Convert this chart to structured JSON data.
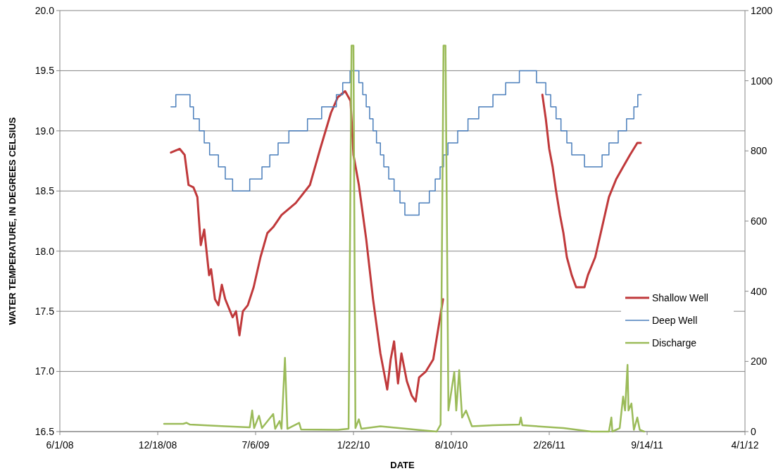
{
  "chart_data": {
    "type": "line",
    "xlabel": "DATE",
    "ylabel": "WATER TEMPERATURE, IN DEGREES CELSIUS",
    "xlim": [
      "2008-06-01",
      "2012-04-01"
    ],
    "xticks": [
      {
        "value": "2008-06-01",
        "label": "6/1/08"
      },
      {
        "value": "2008-12-18",
        "label": "12/18/08"
      },
      {
        "value": "2009-07-06",
        "label": "7/6/09"
      },
      {
        "value": "2010-01-22",
        "label": "1/22/10"
      },
      {
        "value": "2010-08-10",
        "label": "8/10/10"
      },
      {
        "value": "2011-02-26",
        "label": "2/26/11"
      },
      {
        "value": "2011-09-14",
        "label": "9/14/11"
      },
      {
        "value": "2012-04-01",
        "label": "4/1/12"
      }
    ],
    "ylim": [
      16.5,
      20
    ],
    "yticks": [
      {
        "value": 16.5,
        "label": "16.5"
      },
      {
        "value": 17,
        "label": "17.0"
      },
      {
        "value": 17.5,
        "label": "17.5"
      },
      {
        "value": 18,
        "label": "18.0"
      },
      {
        "value": 18.5,
        "label": "18.5"
      },
      {
        "value": 19,
        "label": "19.0"
      },
      {
        "value": 19.5,
        "label": "19.5"
      },
      {
        "value": 20,
        "label": "20.0"
      }
    ],
    "y2lim": [
      0,
      1200
    ],
    "y2ticks": [
      0,
      200,
      400,
      600,
      800,
      1000,
      1200
    ],
    "grid": "y",
    "legend": "bottom right",
    "series": [
      {
        "name": "Shallow Well",
        "color": "#c0393b",
        "x": [
          "2009-01-14",
          "2009-02-01",
          "2009-02-11",
          "2009-02-19",
          "2009-03-01",
          "2009-03-09",
          "2009-03-16",
          "2009-03-23",
          "2009-04-02",
          "2009-04-06",
          "2009-04-14",
          "2009-04-21",
          "2009-04-28",
          "2009-05-05",
          "2009-05-20",
          "2009-05-27",
          "2009-06-03",
          "2009-06-10",
          "2009-06-20",
          "2009-07-02",
          "2009-07-16",
          "2009-07-30",
          "2009-08-11",
          "2009-08-28",
          "2009-09-26",
          "2009-10-25",
          "2009-11-15",
          "2009-12-07",
          "2009-12-21",
          "2010-01-05",
          "2010-01-16",
          "2010-01-22",
          "2010-02-02",
          "2010-02-17",
          "2010-03-03",
          "2010-03-18",
          "2010-03-25",
          "2010-04-01",
          "2010-04-08",
          "2010-04-15",
          "2010-04-23",
          "2010-04-30",
          "2010-05-11",
          "2010-05-21",
          "2010-05-29",
          "2010-06-05",
          "2010-06-19",
          "2010-07-04",
          "2010-07-14",
          "2010-07-24",
          "2010-10-01",
          "2011-02-12",
          "2011-02-19",
          "2011-02-26",
          "2011-03-05",
          "2011-03-12",
          "2011-03-20",
          "2011-03-27",
          "2011-04-03",
          "2011-04-13",
          "2011-04-22",
          "2011-05-09",
          "2011-05-16",
          "2011-05-31",
          "2011-06-14",
          "2011-06-28",
          "2011-07-13",
          "2011-07-27",
          "2011-08-10",
          "2011-08-25",
          "2011-09-01"
        ],
        "values": [
          18.82,
          18.85,
          18.8,
          18.55,
          18.53,
          18.45,
          18.05,
          18.18,
          17.8,
          17.85,
          17.6,
          17.55,
          17.72,
          17.6,
          17.45,
          17.5,
          17.3,
          17.5,
          17.55,
          17.7,
          17.95,
          18.15,
          18.2,
          18.3,
          18.4,
          18.55,
          18.85,
          19.15,
          19.28,
          19.33,
          19.25,
          18.8,
          18.55,
          18.1,
          17.6,
          17.15,
          17.0,
          16.85,
          17.1,
          17.25,
          16.9,
          17.15,
          16.92,
          16.8,
          16.75,
          16.95,
          17.0,
          17.1,
          17.35,
          17.6,
          null,
          19.3,
          19.1,
          18.85,
          18.7,
          18.5,
          18.3,
          18.15,
          17.95,
          17.8,
          17.7,
          17.7,
          17.8,
          17.95,
          18.2,
          18.45,
          18.6,
          18.7,
          18.8,
          18.9,
          18.9
        ]
      },
      {
        "name": "Deep Well",
        "type": "step",
        "color": "#4a7ebb",
        "x": [
          "2009-01-14",
          "2009-01-24",
          "2009-02-22",
          "2009-03-01",
          "2009-03-13",
          "2009-03-23",
          "2009-04-03",
          "2009-04-21",
          "2009-05-05",
          "2009-05-20",
          "2009-06-24",
          "2009-07-19",
          "2009-08-04",
          "2009-08-21",
          "2009-09-12",
          "2009-10-20",
          "2009-11-18",
          "2009-12-18",
          "2009-12-31",
          "2010-01-15",
          "2010-02-02",
          "2010-02-10",
          "2010-02-17",
          "2010-02-24",
          "2010-03-03",
          "2010-03-10",
          "2010-03-18",
          "2010-03-25",
          "2010-04-04",
          "2010-04-15",
          "2010-04-27",
          "2010-05-07",
          "2010-06-05",
          "2010-06-26",
          "2010-07-08",
          "2010-07-18",
          "2010-07-25",
          "2010-08-03",
          "2010-08-23",
          "2010-09-13",
          "2010-10-05",
          "2010-11-03",
          "2010-11-29",
          "2010-12-27",
          "2011-01-31",
          "2011-02-19",
          "2011-03-01",
          "2011-03-12",
          "2011-03-22",
          "2011-04-03",
          "2011-04-13",
          "2011-05-09",
          "2011-06-14",
          "2011-06-28",
          "2011-07-17",
          "2011-08-03",
          "2011-08-18",
          "2011-08-26",
          "2011-09-02"
        ],
        "values": [
          19.2,
          19.3,
          19.2,
          19.1,
          19.0,
          18.9,
          18.8,
          18.7,
          18.6,
          18.5,
          18.6,
          18.7,
          18.8,
          18.9,
          19.0,
          19.1,
          19.2,
          19.3,
          19.4,
          19.5,
          19.4,
          19.3,
          19.2,
          19.1,
          19.0,
          18.9,
          18.8,
          18.7,
          18.6,
          18.5,
          18.4,
          18.3,
          18.4,
          18.5,
          18.6,
          18.7,
          18.8,
          18.9,
          19.0,
          19.1,
          19.2,
          19.3,
          19.4,
          19.5,
          19.4,
          19.3,
          19.2,
          19.1,
          19.0,
          18.9,
          18.8,
          18.7,
          18.8,
          18.9,
          19.0,
          19.1,
          19.2,
          19.3,
          19.3
        ]
      },
      {
        "name": "Discharge",
        "axis": "y2",
        "color": "#9bbb59",
        "x": [
          "2008-12-31",
          "2009-02-08",
          "2009-02-15",
          "2009-02-22",
          "2009-05-05",
          "2009-06-24",
          "2009-06-29",
          "2009-07-03",
          "2009-07-13",
          "2009-07-19",
          "2009-08-11",
          "2009-08-15",
          "2009-08-24",
          "2009-08-28",
          "2009-09-04",
          "2009-09-09",
          "2009-10-03",
          "2009-10-07",
          "2009-12-21",
          "2010-01-12",
          "2010-01-18",
          "2010-01-22",
          "2010-01-26",
          "2010-02-02",
          "2010-02-07",
          "2010-03-18",
          "2010-06-02",
          "2010-07-11",
          "2010-07-19",
          "2010-07-25",
          "2010-07-29",
          "2010-08-04",
          "2010-08-16",
          "2010-08-20",
          "2010-08-26",
          "2010-09-01",
          "2010-09-09",
          "2010-09-21",
          "2010-11-03",
          "2010-12-27",
          "2010-12-30",
          "2011-01-02",
          "2011-03-27",
          "2011-05-23",
          "2011-06-28",
          "2011-07-03",
          "2011-07-05",
          "2011-07-20",
          "2011-07-27",
          "2011-07-31",
          "2011-08-05",
          "2011-08-07",
          "2011-08-13",
          "2011-08-18",
          "2011-08-25",
          "2011-08-30",
          "2011-09-08"
        ],
        "values": [
          22,
          22,
          25,
          20,
          15,
          12,
          60,
          10,
          45,
          10,
          50,
          8,
          30,
          8,
          210,
          8,
          25,
          6,
          5,
          8,
          1100,
          1100,
          10,
          35,
          8,
          15,
          5,
          0,
          20,
          1100,
          1100,
          60,
          170,
          60,
          175,
          40,
          60,
          15,
          18,
          20,
          40,
          18,
          10,
          0,
          0,
          40,
          0,
          10,
          100,
          60,
          190,
          60,
          80,
          5,
          40,
          5,
          0
        ]
      }
    ]
  }
}
